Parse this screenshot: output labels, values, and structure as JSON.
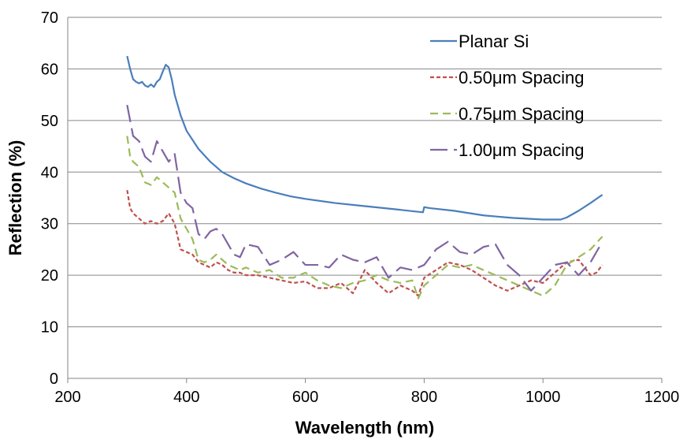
{
  "chart_data": {
    "type": "line",
    "title": "",
    "xlabel": "Wavelength (nm)",
    "ylabel": "Reflection (%)",
    "xlim": [
      200,
      1200
    ],
    "ylim": [
      0,
      70
    ],
    "xticks": [
      200,
      400,
      600,
      800,
      1000,
      1200
    ],
    "yticks": [
      0,
      10,
      20,
      30,
      40,
      50,
      60,
      70
    ],
    "grid": "horizontal",
    "legend_position": "top-right",
    "series": [
      {
        "name": "Planar Si",
        "color": "#4a7ebb",
        "dash": "solid",
        "x": [
          300,
          305,
          310,
          315,
          320,
          325,
          330,
          335,
          340,
          345,
          350,
          355,
          360,
          365,
          370,
          375,
          380,
          390,
          400,
          420,
          440,
          460,
          480,
          500,
          525,
          550,
          575,
          600,
          650,
          700,
          750,
          790,
          798,
          800,
          810,
          850,
          900,
          950,
          1000,
          1030,
          1040,
          1060,
          1080,
          1100
        ],
        "y": [
          62.5,
          60,
          58,
          57.5,
          57.2,
          57.5,
          56.8,
          56.5,
          57,
          56.5,
          57.5,
          58,
          59.5,
          60.8,
          60.3,
          58,
          55,
          51,
          48,
          44.5,
          42,
          40,
          38.8,
          37.8,
          36.8,
          36,
          35.3,
          34.8,
          34,
          33.4,
          32.8,
          32.3,
          32.2,
          33.2,
          33,
          32.5,
          31.6,
          31.1,
          30.8,
          30.8,
          31.2,
          32.5,
          34,
          35.6
        ]
      },
      {
        "name": "0.50μm Spacing",
        "color": "#c0504d",
        "dash": "short",
        "x": [
          300,
          305,
          310,
          320,
          330,
          340,
          350,
          360,
          370,
          380,
          390,
          400,
          410,
          420,
          430,
          440,
          450,
          460,
          470,
          480,
          490,
          500,
          520,
          540,
          560,
          580,
          600,
          620,
          640,
          660,
          680,
          700,
          720,
          740,
          760,
          780,
          790,
          800,
          820,
          840,
          860,
          880,
          900,
          920,
          940,
          960,
          980,
          1000,
          1020,
          1040,
          1060,
          1080,
          1090,
          1100
        ],
        "y": [
          36.5,
          33,
          32,
          31,
          30,
          30.5,
          30,
          30.5,
          32,
          30,
          25,
          24.5,
          24,
          22.5,
          22,
          21.5,
          22.5,
          22,
          21,
          20.5,
          20.5,
          20,
          20,
          19.5,
          19,
          18.5,
          18.8,
          17.5,
          17.5,
          18.5,
          16.5,
          21,
          18.5,
          16.5,
          18,
          17,
          16,
          19.5,
          21,
          22.5,
          22,
          21,
          19.5,
          18,
          17,
          18,
          19,
          18.5,
          20.5,
          22.5,
          23,
          20,
          20.5,
          22
        ]
      },
      {
        "name": "0.75μm Spacing",
        "color": "#9bbb59",
        "dash": "medium",
        "x": [
          300,
          305,
          310,
          320,
          330,
          340,
          350,
          360,
          370,
          380,
          390,
          400,
          410,
          420,
          430,
          440,
          450,
          460,
          470,
          480,
          490,
          500,
          520,
          540,
          560,
          580,
          600,
          620,
          640,
          660,
          680,
          700,
          720,
          740,
          760,
          780,
          790,
          800,
          820,
          840,
          860,
          880,
          900,
          920,
          940,
          960,
          980,
          1000,
          1020,
          1040,
          1060,
          1080,
          1100
        ],
        "y": [
          47,
          43,
          42,
          41,
          38,
          37.5,
          39,
          38,
          37,
          36,
          31,
          29,
          27,
          23,
          22.5,
          23,
          24,
          23,
          22,
          21.5,
          21,
          21.5,
          20.5,
          21,
          19.5,
          19.5,
          20.5,
          19,
          18,
          17.5,
          18.5,
          19,
          20,
          19,
          18.5,
          19,
          15.5,
          18,
          20,
          22,
          21.5,
          22,
          21,
          20,
          19,
          18,
          17,
          16,
          18,
          22,
          23.5,
          25,
          27.5
        ]
      },
      {
        "name": "1.00μm Spacing",
        "color": "#8064a2",
        "dash": "long",
        "x": [
          300,
          305,
          310,
          320,
          330,
          340,
          350,
          360,
          370,
          380,
          390,
          400,
          410,
          420,
          430,
          440,
          450,
          460,
          470,
          480,
          490,
          500,
          520,
          540,
          560,
          580,
          600,
          620,
          640,
          660,
          680,
          700,
          720,
          740,
          760,
          780,
          800,
          820,
          840,
          860,
          880,
          900,
          920,
          940,
          960,
          980,
          1000,
          1020,
          1040,
          1060,
          1080,
          1100
        ],
        "y": [
          53,
          50,
          47,
          46,
          43,
          42,
          46,
          44,
          42,
          43.5,
          36,
          34,
          33,
          28,
          27,
          28.5,
          29,
          28,
          26,
          24,
          23.5,
          26,
          25.5,
          22,
          23,
          24.5,
          22,
          22,
          21.5,
          24,
          23,
          22.5,
          23.5,
          19.5,
          21.5,
          21,
          22,
          25,
          26.5,
          24.5,
          24,
          25.5,
          26,
          22,
          20,
          17,
          19.5,
          22,
          22.5,
          20,
          22.5,
          26.5
        ]
      }
    ]
  }
}
